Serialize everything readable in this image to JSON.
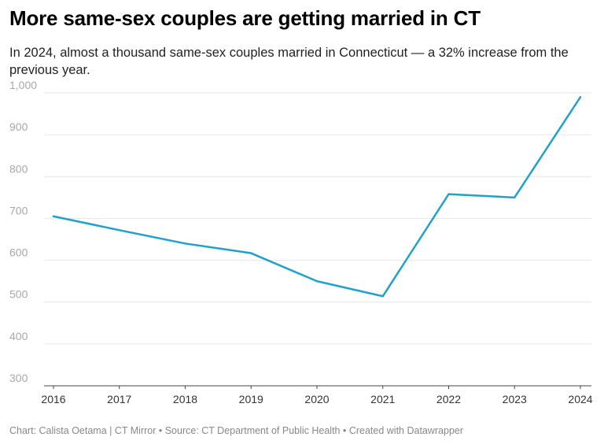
{
  "title": "More same-sex couples are getting married in CT",
  "subtitle": "In 2024, almost a thousand same-sex couples married in Connecticut — a 32% increase from the previous year.",
  "footer": "Chart: Calista Oetama | CT Mirror • Source: CT Department of Public Health • Created with Datawrapper",
  "colors": {
    "line": "#1fa1cc",
    "grid": "#e6e6e6",
    "axis": "#444444"
  },
  "chart_data": {
    "type": "line",
    "x": [
      "2016",
      "2017",
      "2018",
      "2019",
      "2020",
      "2021",
      "2022",
      "2023",
      "2024"
    ],
    "series": [
      {
        "values": [
          705,
          672,
          640,
          617,
          550,
          514,
          758,
          750,
          990
        ]
      }
    ],
    "ylim": [
      300,
      1000
    ],
    "yticks": [
      300,
      400,
      500,
      600,
      700,
      800,
      900,
      1000
    ],
    "ytick_labels": [
      "300",
      "400",
      "500",
      "600",
      "700",
      "800",
      "900",
      "1,000"
    ],
    "grid": true,
    "xlabel": "",
    "ylabel": ""
  }
}
